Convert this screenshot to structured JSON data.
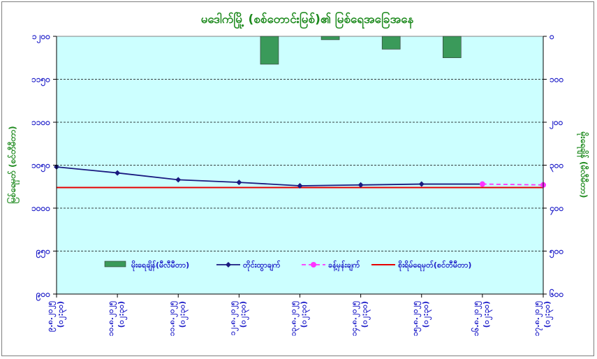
{
  "chart_data": {
    "type": "line",
    "title": "မဒေါက်မြို့ (စစ်တောင်းမြစ်)၏ မြစ်ရေအခြေအနေ",
    "ylabel_left": "မြစ်ရေမှတ် (စင်တီမီတာ)",
    "ylabel_right": "မိုးရေချိန် (မီလီမီတာ)",
    "yleft_ticks": [
      "၉၀၀",
      "၉၅၀",
      "၁၀၀၀",
      "၁၀၅၀",
      "၁၁၀၀",
      "၁၁၅၀",
      "၁၂၀၀"
    ],
    "yleft_lim": [
      900,
      1200
    ],
    "yright_ticks": [
      "၀",
      "၁၀၀",
      "၂၀၀",
      "၃၀၀",
      "၄၀၀",
      "၅၀၀",
      "၆၀၀"
    ],
    "yright_lim": [
      0,
      600
    ],
    "yright_inverted": true,
    "categories": [
      "၉.၈.၂၀၂၅ (၀၂:၃၀)",
      "၁၀.၈.၂၀၂၅ (၀၂:၃၀)",
      "၁၁.၈.၂၀၂၅ (၀၂:၃၀)",
      "၁၂.၈.၂၀၂၅ (၀၂:၃၀)",
      "၁၃.၈.၂၀၂၅ (၀၂:၃၀)",
      "၁၄.၈.၂၀၂၅ (၀၂:၃၀)",
      "၁၅.၈.၂၀၂၅ (၀၂:၃၀)",
      "၁၆.၈.၂၀၂၅ (၀၂:၃၀)",
      "၁၇.၈.၂၀၂၅ (၀၂:၃၀)"
    ],
    "grid": true,
    "legend_position": "bottom-center",
    "series": [
      {
        "name": "မိုးရေချိန်(မီလီမီတာ)",
        "type": "bar",
        "axis": "right",
        "color": "#3a9a5a",
        "values": [
          0,
          0,
          0,
          0,
          65,
          8,
          30,
          50,
          null
        ]
      },
      {
        "name": "တိုင်းထွာချက်",
        "type": "line",
        "axis": "left",
        "color": "#1a1a80",
        "values": [
          1048,
          1041,
          1033,
          1030,
          1026,
          1027,
          1028,
          1028,
          null
        ]
      },
      {
        "name": "ခန့်မှန်းချက်",
        "type": "line-dashed",
        "axis": "left",
        "color": "#ff33ff",
        "values": [
          null,
          null,
          null,
          null,
          null,
          null,
          null,
          1028,
          1027
        ]
      },
      {
        "name": "စိုးရိမ်ရေမှတ်(စင်တီမီတာ)",
        "type": "hline",
        "axis": "left",
        "color": "#e60000",
        "value": 1024
      }
    ]
  }
}
